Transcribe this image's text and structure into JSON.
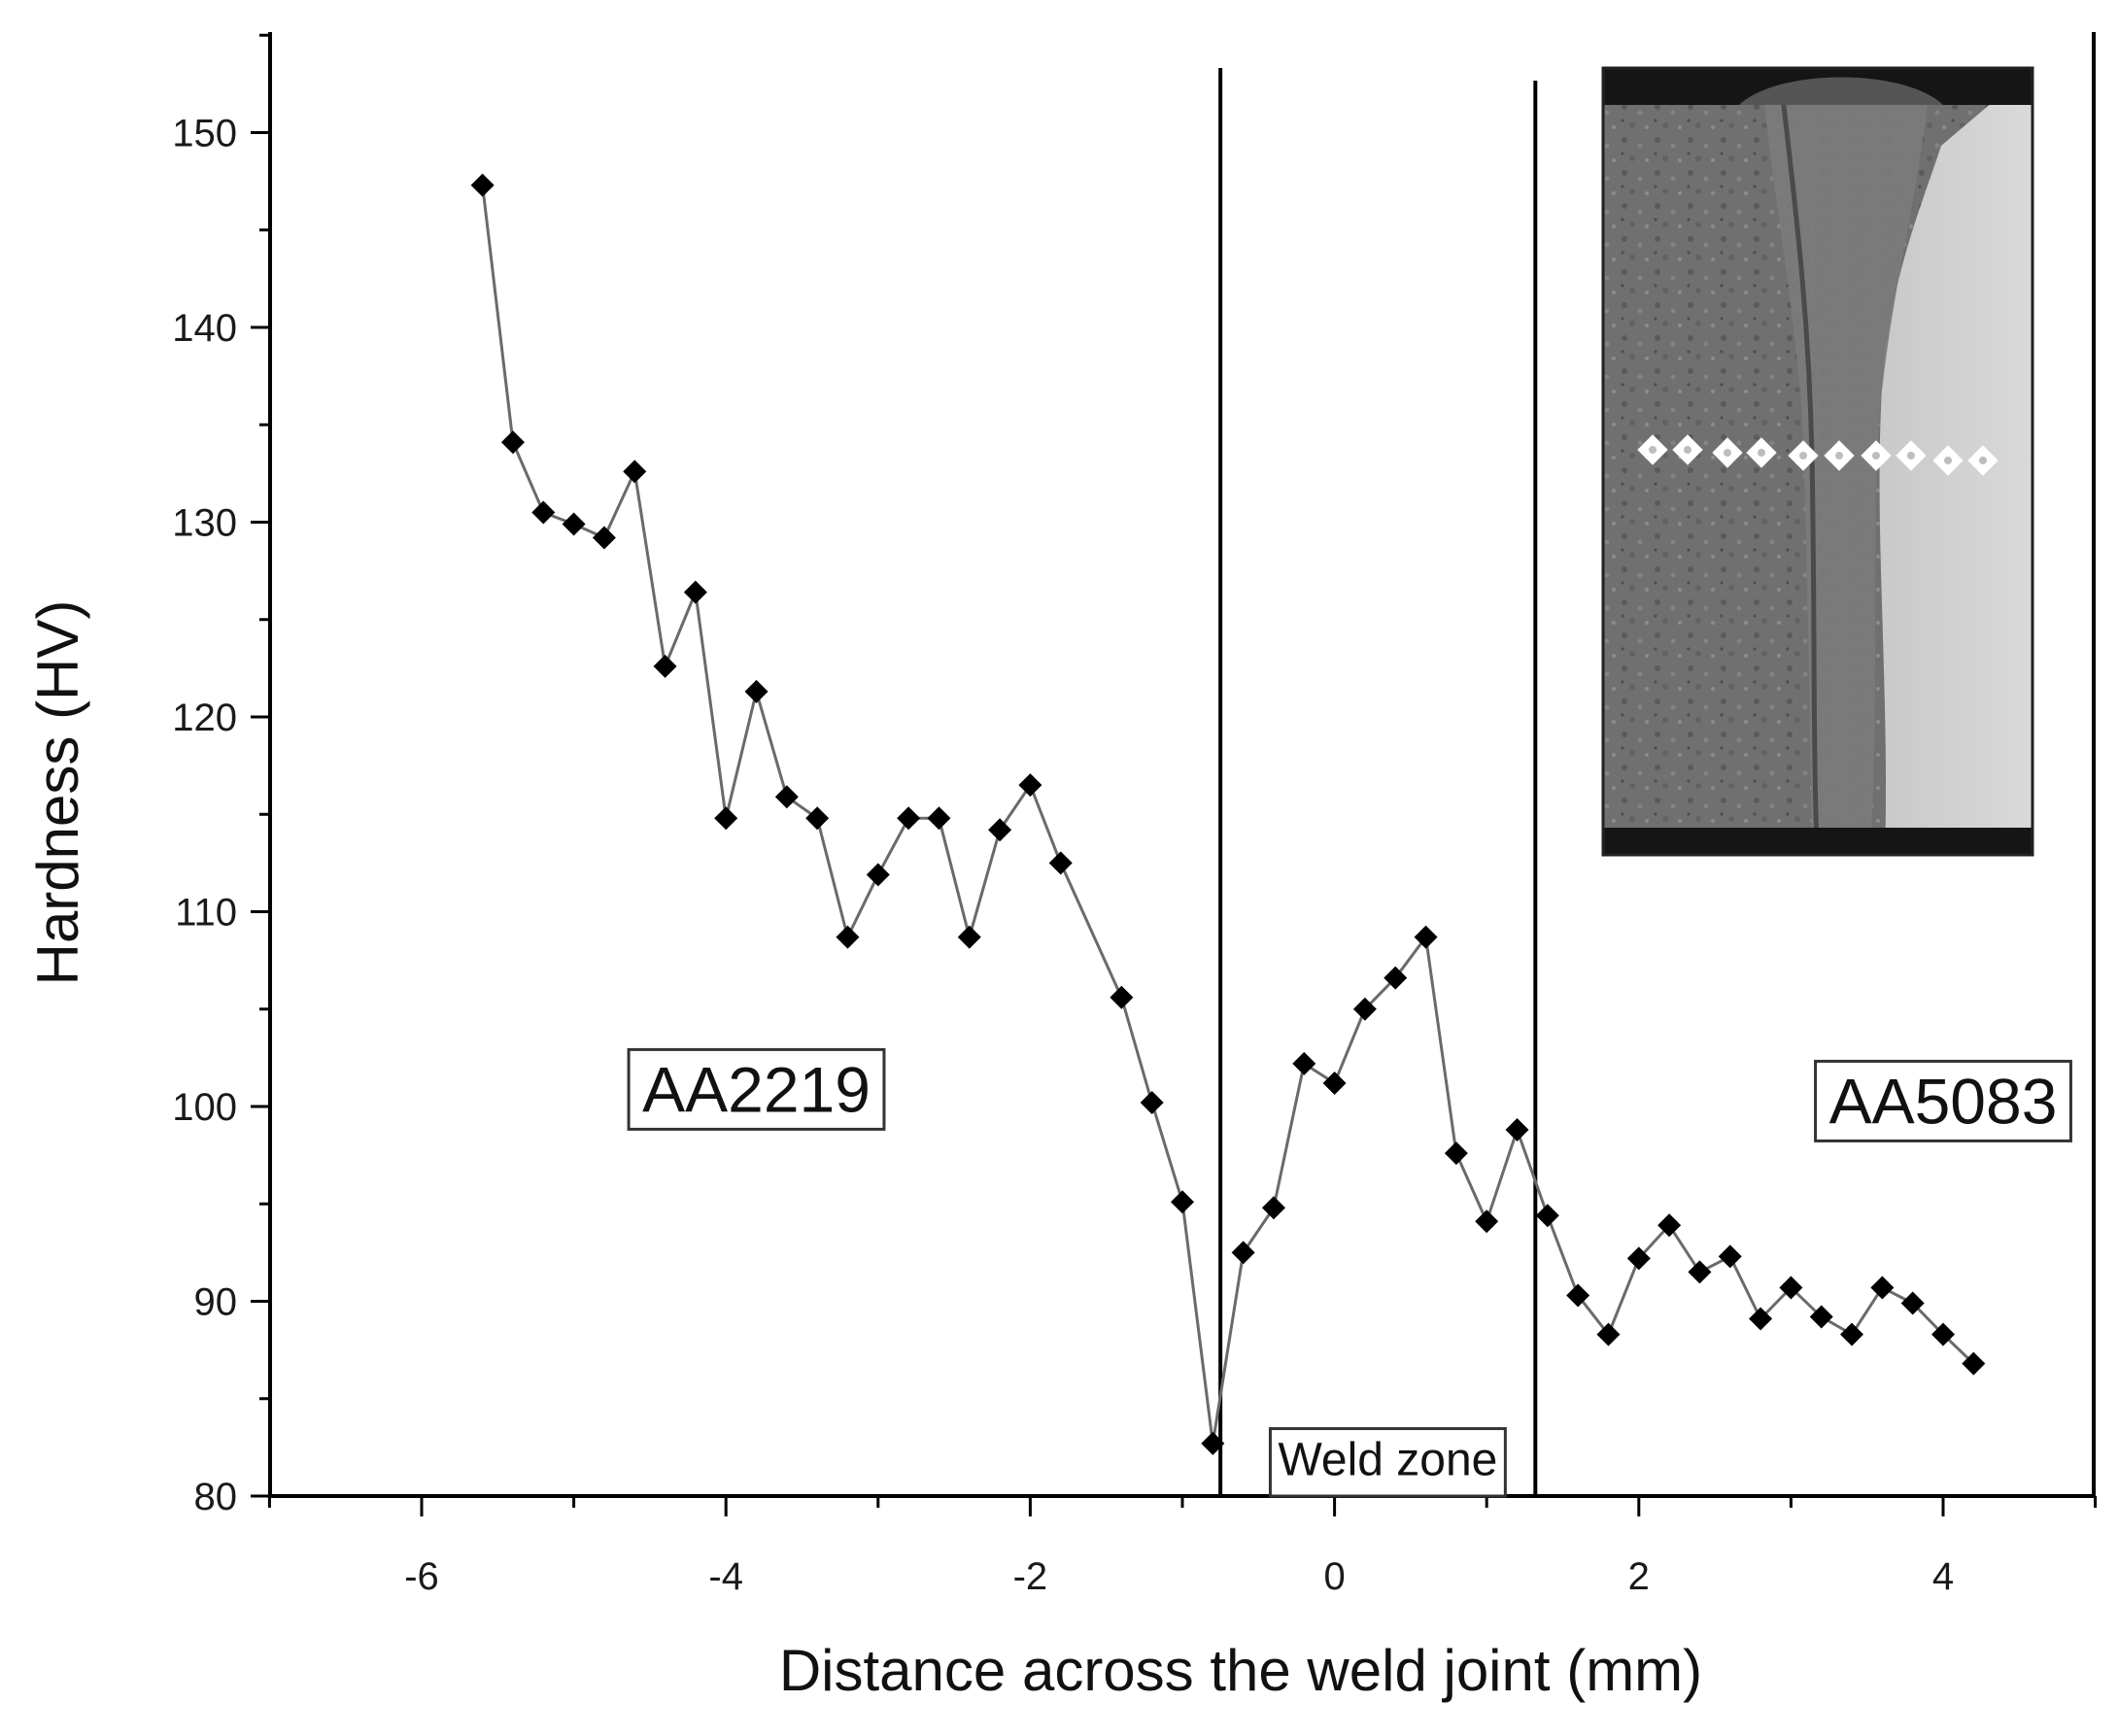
{
  "chart_data": {
    "type": "line",
    "title": "",
    "xlabel": "Distance across the weld joint (mm)",
    "ylabel": "Hardness (HV)",
    "xlim": [
      -7,
      5
    ],
    "ylim": [
      80,
      155
    ],
    "xticks": [
      -6,
      -4,
      -2,
      0,
      2,
      4
    ],
    "yticks": [
      80,
      90,
      100,
      110,
      120,
      130,
      140,
      150
    ],
    "grid": false,
    "legend": "none",
    "series": [
      {
        "marker": "diamond",
        "color": "#000000",
        "line_color": "#6a6a6a",
        "x": [
          -5.6,
          -5.4,
          -5.2,
          -5.0,
          -4.8,
          -4.6,
          -4.4,
          -4.2,
          -4.0,
          -3.8,
          -3.6,
          -3.4,
          -3.2,
          -3.0,
          -2.8,
          -2.6,
          -2.4,
          -2.2,
          -2.0,
          -1.8,
          -1.4,
          -1.2,
          -1.0,
          -0.8,
          -0.6,
          -0.4,
          -0.2,
          0.0,
          0.2,
          0.4,
          0.6,
          0.8,
          1.0,
          1.2,
          1.4,
          1.6,
          1.8,
          2.0,
          2.2,
          2.4,
          2.6,
          2.8,
          3.0,
          3.2,
          3.4,
          3.6,
          3.8,
          4.0,
          4.2
        ],
        "y": [
          147.3,
          134.1,
          130.5,
          129.9,
          129.2,
          132.6,
          122.6,
          126.4,
          114.8,
          121.3,
          115.9,
          114.8,
          108.7,
          111.9,
          114.8,
          114.8,
          108.7,
          114.2,
          116.5,
          112.5,
          105.6,
          100.2,
          95.1,
          82.7,
          92.5,
          94.8,
          102.2,
          101.2,
          105.0,
          106.6,
          108.7,
          97.6,
          94.1,
          98.8,
          94.4,
          90.3,
          88.3,
          92.2,
          93.9,
          91.5,
          92.3,
          89.1,
          90.7,
          89.2,
          88.3,
          90.7,
          89.9,
          88.3,
          86.8
        ]
      }
    ],
    "annotations": {
      "vertical_lines": [
        -0.75,
        1.32
      ],
      "region_labels": [
        {
          "text": "AA2219",
          "x": -3.8,
          "y": 100.6
        },
        {
          "text": "AA5083",
          "x": 4.0,
          "y": 100.0
        },
        {
          "text": "Weld zone",
          "x": 0.35,
          "y": 81.7
        }
      ]
    },
    "inset_image": "weld cross-section micrograph with white indentation markers"
  }
}
